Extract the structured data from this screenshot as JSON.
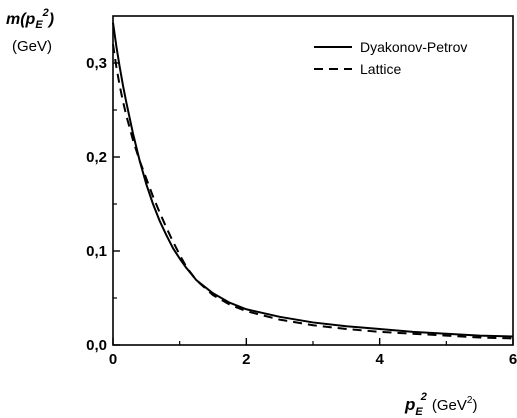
{
  "chart_data": {
    "type": "line",
    "ylabel": {
      "symbol": "m(p",
      "sub": "E",
      "sup": "2",
      "close": ")",
      "unit": "(GeV)"
    },
    "xlabel": {
      "symbol": "p",
      "sub": "E",
      "sup": "2",
      "unit_prefix": "(GeV",
      "unit_sup": "2",
      "unit_suffix": ")"
    },
    "xlim": [
      0,
      6
    ],
    "ylim": [
      0,
      0.35
    ],
    "x_ticks": [
      0,
      2,
      4,
      6
    ],
    "x_tick_labels": [
      "0",
      "2",
      "4",
      "6"
    ],
    "y_ticks": [
      0,
      0.1,
      0.2,
      0.3
    ],
    "y_tick_labels": [
      "0,0",
      "0,1",
      "0,2",
      "0,3"
    ],
    "grid": false,
    "legend_position": "top-right",
    "series": [
      {
        "name": "Dyakonov-Petrov",
        "style": "solid",
        "x": [
          0.0,
          0.05,
          0.1,
          0.15,
          0.2,
          0.3,
          0.4,
          0.5,
          0.6,
          0.7,
          0.8,
          0.9,
          1.0,
          1.1,
          1.25,
          1.5,
          1.75,
          2.0,
          2.5,
          3.0,
          3.5,
          4.0,
          4.5,
          5.0,
          5.5,
          6.0
        ],
        "y": [
          0.343,
          0.318,
          0.296,
          0.276,
          0.258,
          0.225,
          0.196,
          0.171,
          0.15,
          0.132,
          0.117,
          0.103,
          0.092,
          0.082,
          0.069,
          0.055,
          0.045,
          0.038,
          0.03,
          0.024,
          0.02,
          0.017,
          0.014,
          0.012,
          0.01,
          0.009
        ]
      },
      {
        "name": "Lattice",
        "style": "dashed",
        "x": [
          0.0,
          0.05,
          0.1,
          0.15,
          0.2,
          0.3,
          0.4,
          0.5,
          0.6,
          0.7,
          0.8,
          0.9,
          1.0,
          1.1,
          1.25,
          1.5,
          1.75,
          2.0,
          2.5,
          3.0,
          3.5,
          4.0,
          4.5,
          5.0,
          5.5,
          6.0
        ],
        "y": [
          0.32,
          0.296,
          0.276,
          0.259,
          0.244,
          0.218,
          0.196,
          0.177,
          0.158,
          0.141,
          0.125,
          0.11,
          0.096,
          0.083,
          0.069,
          0.053,
          0.043,
          0.036,
          0.027,
          0.021,
          0.017,
          0.014,
          0.012,
          0.01,
          0.008,
          0.007
        ]
      }
    ]
  }
}
